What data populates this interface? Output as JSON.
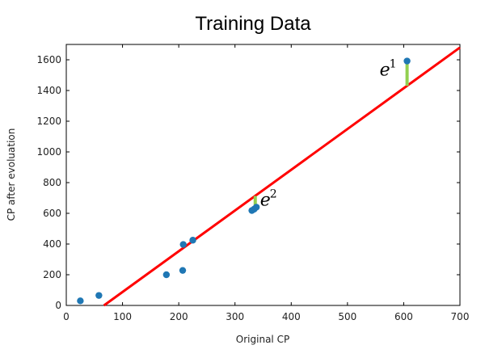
{
  "chart_data": {
    "type": "scatter",
    "title": "Training Data",
    "xlabel": "Original CP",
    "ylabel": "CP after evoluation",
    "xlim": [
      0,
      700
    ],
    "ylim": [
      0,
      1700
    ],
    "x_ticks": [
      "0",
      "100",
      "200",
      "300",
      "400",
      "500",
      "600",
      "700"
    ],
    "y_ticks": [
      "0",
      "200",
      "400",
      "600",
      "800",
      "1000",
      "1200",
      "1400",
      "1600"
    ],
    "grid": false,
    "points": [
      {
        "x": 25,
        "y": 30
      },
      {
        "x": 58,
        "y": 65
      },
      {
        "x": 178,
        "y": 200
      },
      {
        "x": 207,
        "y": 228
      },
      {
        "x": 208,
        "y": 397
      },
      {
        "x": 225,
        "y": 425
      },
      {
        "x": 330,
        "y": 618
      },
      {
        "x": 334,
        "y": 627
      },
      {
        "x": 338,
        "y": 640
      },
      {
        "x": 606,
        "y": 1592
      }
    ],
    "point_color": "#1f77b4",
    "regression_line": {
      "color": "#ff0000",
      "from": {
        "x": 67,
        "y": 0
      },
      "to": {
        "x": 700,
        "y": 1680
      }
    },
    "error_segments": [
      {
        "label": "e",
        "superscript": "1",
        "x": 606,
        "y_from": 1592,
        "y_to": 1430,
        "color": "#92d050"
      },
      {
        "label": "e",
        "superscript": "2",
        "x": 336,
        "y_from": 640,
        "y_to": 713,
        "color": "#92d050"
      }
    ]
  }
}
